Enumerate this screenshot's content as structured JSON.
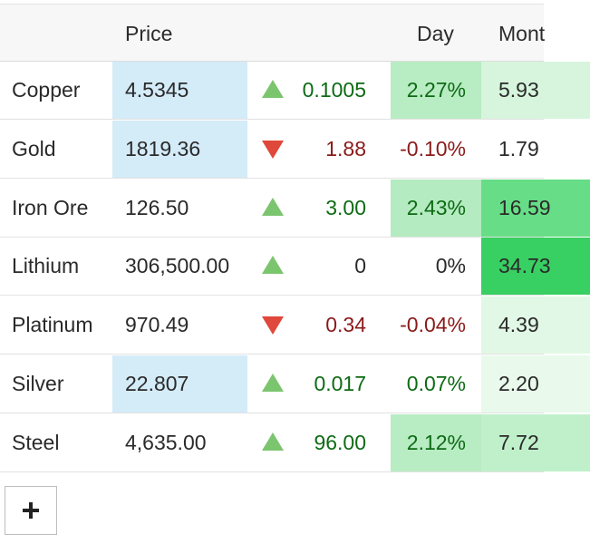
{
  "headers": {
    "name": "",
    "price": "Price",
    "day": "Day",
    "month": "Mont"
  },
  "colors": {
    "up_text": "#0d6b14",
    "down_text": "#8b1a1a",
    "neutral_text": "#2a2a2a",
    "price_highlight": "#d4ebf8",
    "arrow_up": "#7cc56f",
    "arrow_down": "#e0483c"
  },
  "rows": [
    {
      "name": "Copper",
      "price": "4.5345",
      "direction": "up",
      "change": "0.1005",
      "day": "2.27%",
      "month": "5.93"
    },
    {
      "name": "Gold",
      "price": "1819.36",
      "direction": "down",
      "change": "1.88",
      "day": "-0.10%",
      "month": "1.79"
    },
    {
      "name": "Iron Ore",
      "price": "126.50",
      "direction": "up",
      "change": "3.00",
      "day": "2.43%",
      "month": "16.59"
    },
    {
      "name": "Lithium",
      "price": "306,500.00",
      "direction": "up",
      "change": "0",
      "day": "0%",
      "month": "34.73"
    },
    {
      "name": "Platinum",
      "price": "970.49",
      "direction": "down",
      "change": "0.34",
      "day": "-0.04%",
      "month": "4.39"
    },
    {
      "name": "Silver",
      "price": "22.807",
      "direction": "up",
      "change": "0.017",
      "day": "0.07%",
      "month": "2.20"
    },
    {
      "name": "Steel",
      "price": "4,635.00",
      "direction": "up",
      "change": "96.00",
      "day": "2.12%",
      "month": "7.72"
    }
  ],
  "add_button": {
    "icon": "plus-icon"
  }
}
